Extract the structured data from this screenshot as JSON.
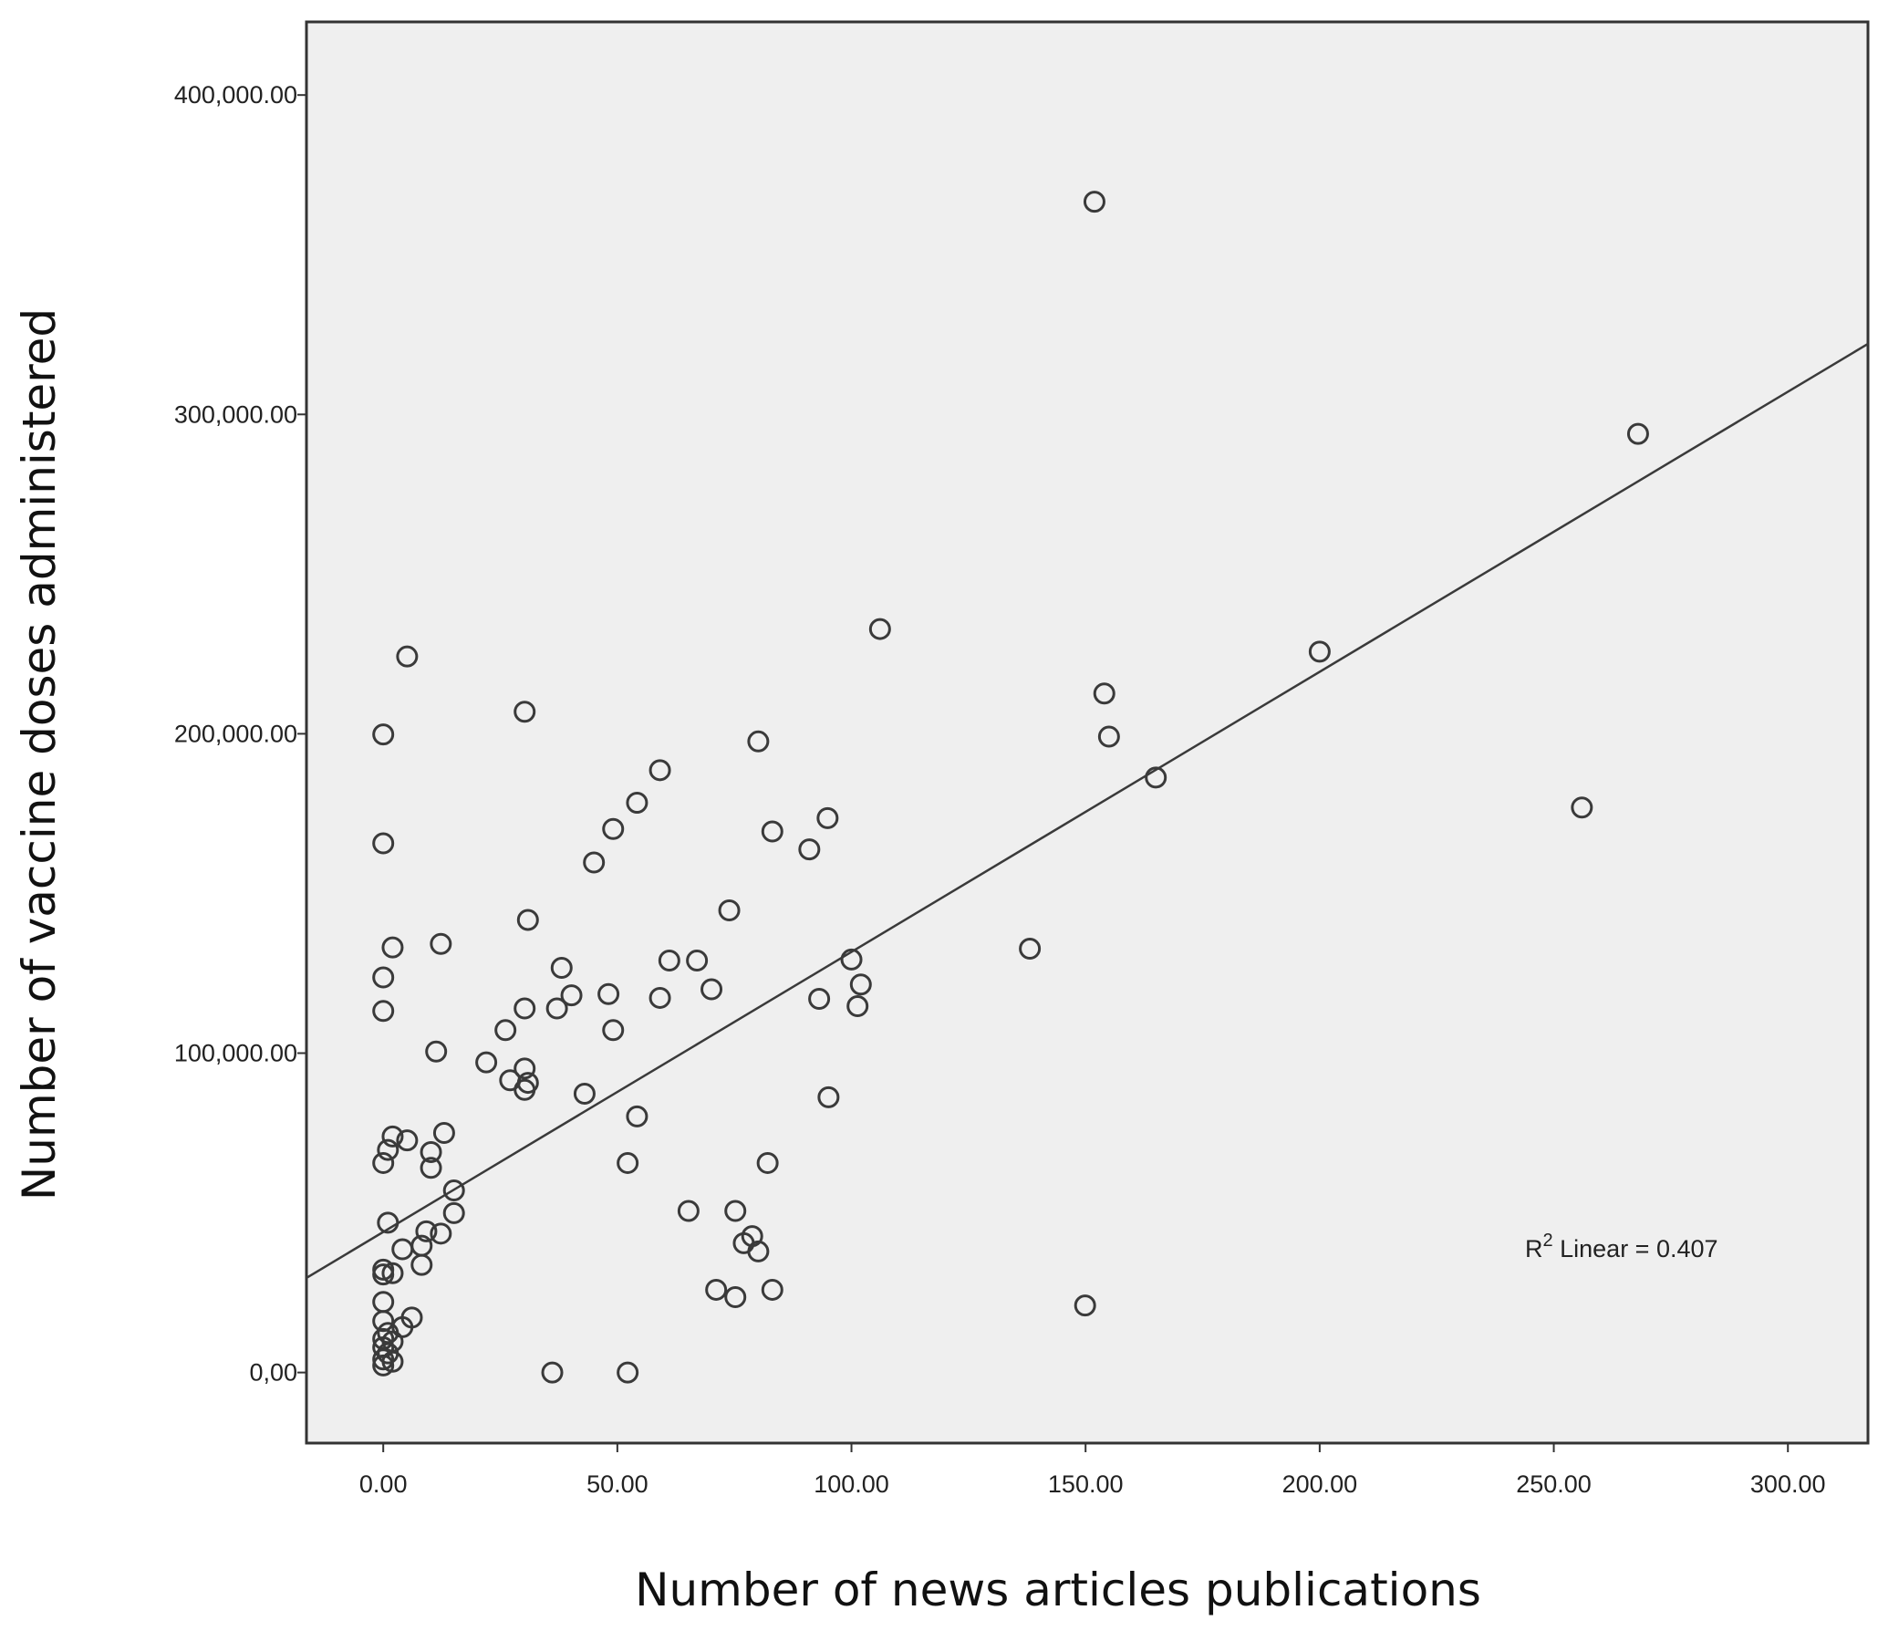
{
  "chart_data": {
    "type": "scatter",
    "x_label": "Number of news articles publications",
    "y_label": "Number of vaccine doses administered",
    "annotation": {
      "base": "R",
      "superscript": "2",
      "rest": " Linear = 0.407"
    },
    "marker_color": "#3a3a3a",
    "background": "#efefef",
    "trendline": {
      "slope": 877,
      "intercept": 44000,
      "color": "#3a3a3a"
    },
    "xlim": [
      -16.4,
      317.1
    ],
    "ylim": [
      -22100,
      422900
    ],
    "xticks": [
      {
        "value": 0,
        "label": "0.00"
      },
      {
        "value": 50,
        "label": "50.00"
      },
      {
        "value": 100,
        "label": "100.00"
      },
      {
        "value": 150,
        "label": "150.00"
      },
      {
        "value": 200,
        "label": "200.00"
      },
      {
        "value": 250,
        "label": "250.00"
      },
      {
        "value": 300,
        "label": "300.00"
      }
    ],
    "yticks": [
      {
        "value": 0,
        "label": "0,00"
      },
      {
        "value": 100000,
        "label": "100,000.00"
      },
      {
        "value": 200000,
        "label": "200,000.00"
      },
      {
        "value": 300000,
        "label": "300,000.00"
      },
      {
        "value": 400000,
        "label": "400,000.00"
      }
    ],
    "x": [
      151.9,
      268.0,
      106.1,
      5.1,
      200.0,
      30.2,
      0,
      80.1,
      154.0,
      155.0,
      165.0,
      256.0,
      59.1,
      54.2,
      49.1,
      83.1,
      94.9,
      91.0,
      45.0,
      0,
      73.9,
      30.9,
      2.0,
      12.3,
      138.1,
      61.1,
      67.0,
      100.0,
      0,
      38.1,
      70.1,
      102.0,
      48.1,
      59.1,
      93.1,
      40.2,
      30.2,
      37.1,
      101.3,
      0,
      26.1,
      49.1,
      11.3,
      22.0,
      30.2,
      27.1,
      30.9,
      30.2,
      43.0,
      95.1,
      54.2,
      13.0,
      2.0,
      5.1,
      1.0,
      10.2,
      0,
      10.2,
      52.2,
      82.1,
      15.1,
      15.1,
      65.2,
      75.2,
      1.0,
      9.2,
      12.3,
      78.8,
      77.0,
      8.2,
      4.1,
      80.1,
      8.2,
      0,
      2.0,
      0,
      71.1,
      83.1,
      75.2,
      0,
      149.9,
      6.1,
      0,
      4.1,
      1.0,
      0,
      2.0,
      0,
      1.0,
      0,
      2.0,
      0,
      36.1,
      52.2
    ],
    "values": [
      366600,
      293900,
      232800,
      224200,
      225700,
      206900,
      199800,
      197600,
      212600,
      199100,
      186300,
      176900,
      188600,
      178400,
      170200,
      169400,
      173600,
      163800,
      159700,
      165700,
      144700,
      141700,
      133100,
      134200,
      132700,
      129000,
      129000,
      129300,
      123700,
      126700,
      120000,
      121500,
      118500,
      117300,
      117000,
      118100,
      114000,
      114000,
      114700,
      113200,
      107200,
      107200,
      100500,
      97100,
      95200,
      91500,
      90700,
      88500,
      87300,
      86200,
      80200,
      75000,
      73900,
      72700,
      69700,
      69000,
      65600,
      64100,
      65600,
      65600,
      57000,
      49900,
      50600,
      50600,
      46900,
      44200,
      43500,
      42700,
      40500,
      39700,
      38600,
      37900,
      33700,
      32200,
      31100,
      30700,
      25900,
      25900,
      23600,
      22100,
      21000,
      17200,
      16100,
      14200,
      12400,
      10500,
      9700,
      7900,
      6000,
      4100,
      3400,
      2200,
      0,
      0
    ]
  }
}
